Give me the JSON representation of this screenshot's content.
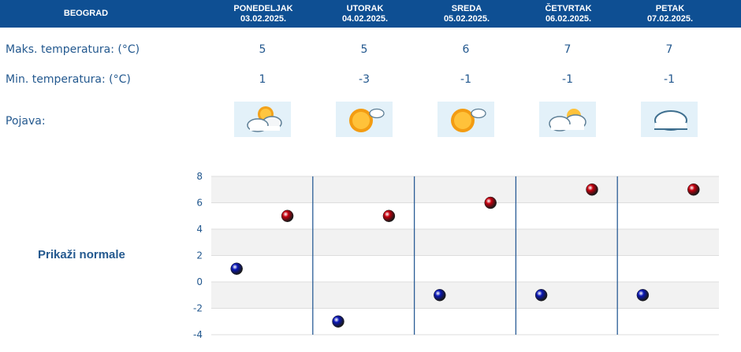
{
  "header": {
    "city": "BEOGRAD",
    "days": [
      {
        "name": "PONEDELJAK",
        "date": "03.02.2025."
      },
      {
        "name": "UTORAK",
        "date": "04.02.2025."
      },
      {
        "name": "SREDA",
        "date": "05.02.2025."
      },
      {
        "name": "ČETVRTAK",
        "date": "06.02.2025."
      },
      {
        "name": "PETAK",
        "date": "07.02.2025."
      }
    ]
  },
  "rows": {
    "max_label": "Maks. temperatura: (°C)",
    "min_label": "Min. temperatura: (°C)",
    "phenomenon_label": "Pojava:",
    "max_values": [
      "5",
      "5",
      "6",
      "7",
      "7"
    ],
    "min_values": [
      "1",
      "-3",
      "-1",
      "-1",
      "-1"
    ],
    "icons": [
      "partly-cloudy-icon",
      "mostly-sunny-icon",
      "mostly-sunny-icon",
      "clouds-with-sun-icon",
      "cloudy-icon"
    ]
  },
  "normals_link": "Prikaži normale",
  "chart_data": {
    "type": "scatter",
    "y_ticks": [
      "8",
      "6",
      "4",
      "2",
      "0",
      "-2",
      "-4"
    ],
    "ylim": [
      -4,
      8
    ],
    "grid": true,
    "series": [
      {
        "values": [
          1,
          -3,
          -1,
          -1,
          -1
        ],
        "color": "#0a17b8"
      },
      {
        "values": [
          5,
          5,
          6,
          7,
          7
        ],
        "color": "#c8000e"
      }
    ]
  },
  "colors": {
    "header_bg": "#0e4f93",
    "text": "#24598f",
    "separator": "#2a5d96",
    "band": "#f2f2f2"
  }
}
